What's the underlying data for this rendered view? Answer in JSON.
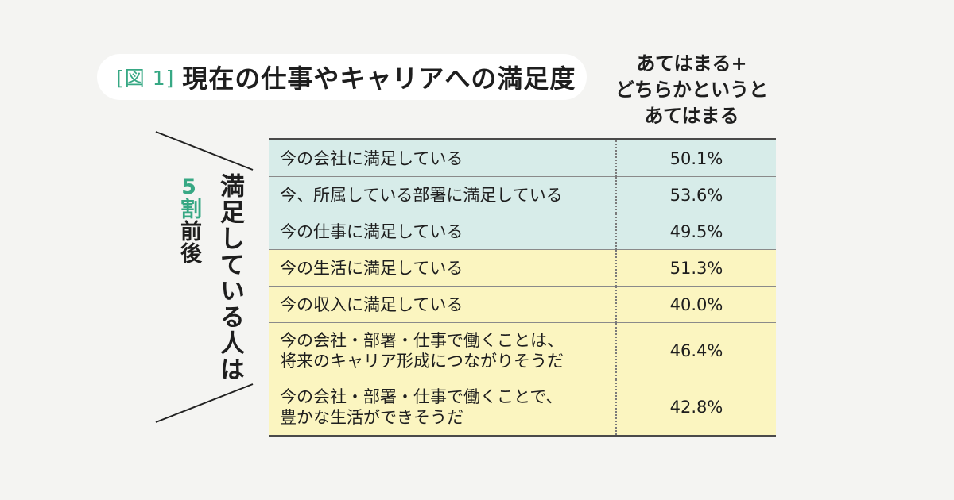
{
  "chart_data": {
    "type": "table",
    "figure_label": "[図 1]",
    "title": "現在の仕事やキャリアへの満足度",
    "column_header": [
      "あてはまる+",
      "どちらかというと",
      "あてはまる"
    ],
    "side_note": {
      "main": "満足している人は",
      "sub_number": "5",
      "sub_unit": "割",
      "sub_rest": "前後"
    },
    "rows": [
      {
        "label": [
          "今の会社に満足している"
        ],
        "value": "50.1%",
        "group": "blue"
      },
      {
        "label": [
          "今、所属している部署に満足している"
        ],
        "value": "53.6%",
        "group": "blue"
      },
      {
        "label": [
          "今の仕事に満足している"
        ],
        "value": "49.5%",
        "group": "blue"
      },
      {
        "label": [
          "今の生活に満足している"
        ],
        "value": "51.3%",
        "group": "yellow"
      },
      {
        "label": [
          "今の収入に満足している"
        ],
        "value": "40.0%",
        "group": "yellow"
      },
      {
        "label": [
          "今の会社・部署・仕事で働くことは、",
          "将来のキャリア形成につながりそうだ"
        ],
        "value": "46.4%",
        "group": "yellow"
      },
      {
        "label": [
          "今の会社・部署・仕事で働くことで、",
          "豊かな生活ができそうだ"
        ],
        "value": "42.8%",
        "group": "yellow"
      }
    ],
    "colors": {
      "blue_rows": "#d7ece9",
      "yellow_rows": "#fbf5c0",
      "accent": "#37a884"
    }
  }
}
